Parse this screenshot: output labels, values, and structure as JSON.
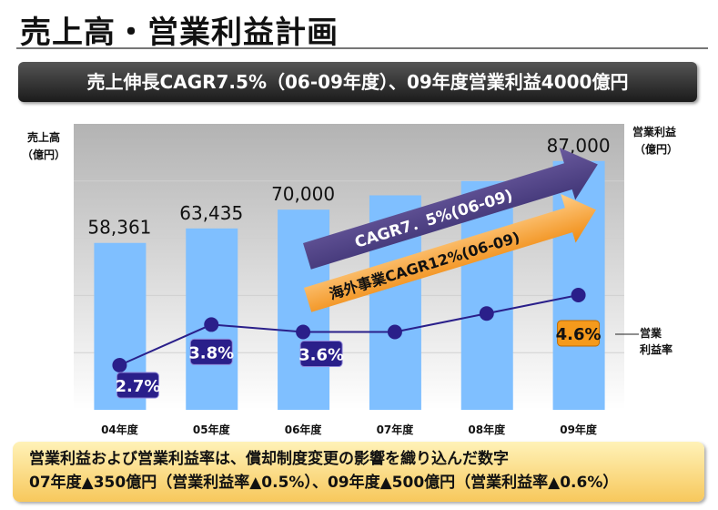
{
  "title": "売上高・営業利益計画",
  "banner": "売上伸長CAGR7.5%（06-09年度）、09年度営業利益4000億円",
  "chart_data": {
    "type": "bar",
    "categories": [
      "04年度",
      "05年度",
      "06年度",
      "07年度",
      "08年度",
      "09年度"
    ],
    "series": [
      {
        "name": "売上高",
        "values": [
          58361,
          63435,
          70000,
          75000,
          80000,
          87000
        ],
        "labels": [
          "58,361",
          "63,435",
          "70,000",
          "",
          "",
          "87,000"
        ],
        "color": "#7fbfff"
      },
      {
        "name": "営業利益率",
        "type": "line",
        "values": [
          2.7,
          3.8,
          3.6,
          3.6,
          4.1,
          4.6
        ],
        "labels": [
          "2.7%",
          "3.8%",
          "3.6%",
          "",
          "",
          "4.6%"
        ],
        "color": "#2a1f8a"
      }
    ],
    "ylabel_left": [
      "売上高",
      "（億円）"
    ],
    "ylabel_right": [
      "営業利益",
      "（億円）"
    ],
    "line_label": [
      "営業",
      "利益率"
    ],
    "ylim": [
      0,
      100000
    ],
    "grid_step": 20000,
    "annotations": [
      "CAGR7．5%(06-09)",
      "海外事業CAGR12%(06-09)"
    ]
  },
  "note": {
    "line1": "営業利益および営業利益率は、償却制度変更の影響を織り込んだ数字",
    "line2": "07年度▲350億円（営業利益率▲0.5%）、09年度▲500億円（営業利益率▲0.6%）"
  }
}
